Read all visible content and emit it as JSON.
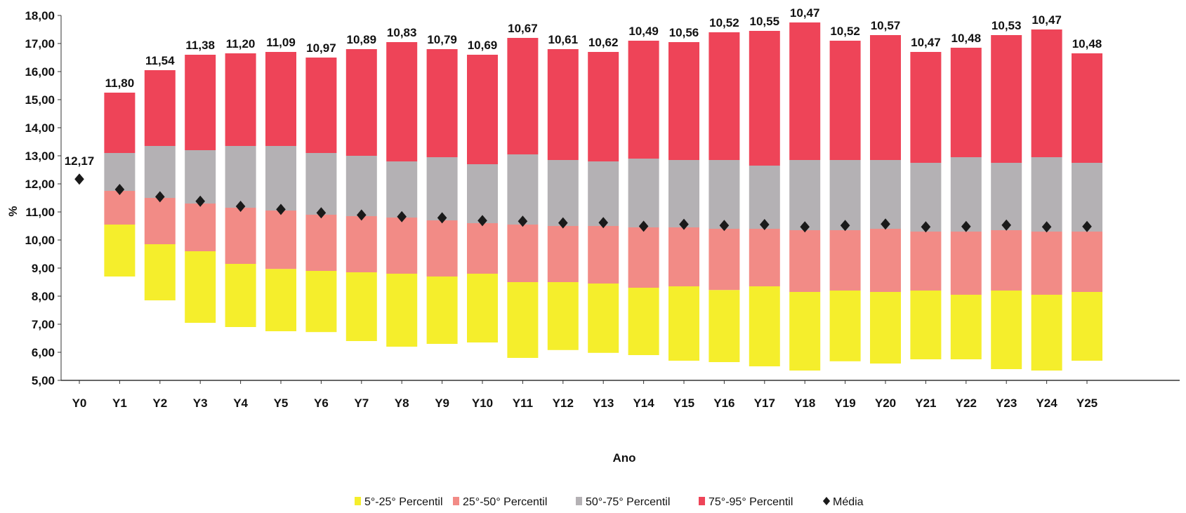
{
  "chart_data": {
    "type": "bar",
    "ylabel": "%",
    "xlabel": "Ano",
    "ylim": [
      5,
      18
    ],
    "yticks": [
      "5,00",
      "6,00",
      "7,00",
      "8,00",
      "9,00",
      "10,00",
      "11,00",
      "12,00",
      "13,00",
      "14,00",
      "15,00",
      "16,00",
      "17,00",
      "18,00"
    ],
    "categories": [
      "Y0",
      "Y1",
      "Y2",
      "Y3",
      "Y4",
      "Y5",
      "Y6",
      "Y7",
      "Y8",
      "Y9",
      "Y10",
      "Y11",
      "Y12",
      "Y13",
      "Y14",
      "Y15",
      "Y16",
      "Y17",
      "Y18",
      "Y19",
      "Y20",
      "Y21",
      "Y22",
      "Y23",
      "Y24",
      "Y25"
    ],
    "p5": [
      null,
      8.7,
      7.85,
      7.05,
      6.9,
      6.75,
      6.72,
      6.4,
      6.2,
      6.3,
      6.35,
      5.8,
      6.08,
      5.98,
      5.9,
      5.7,
      5.65,
      5.5,
      5.35,
      5.68,
      5.6,
      5.75,
      5.75,
      5.4,
      5.35,
      5.7
    ],
    "p25": [
      null,
      10.55,
      9.85,
      9.6,
      9.15,
      8.97,
      8.9,
      8.85,
      8.8,
      8.7,
      8.8,
      8.5,
      8.5,
      8.45,
      8.3,
      8.35,
      8.22,
      8.35,
      8.15,
      8.2,
      8.15,
      8.2,
      8.05,
      8.2,
      8.05,
      8.15
    ],
    "p50": [
      null,
      11.75,
      11.5,
      11.3,
      11.15,
      11.05,
      10.9,
      10.85,
      10.8,
      10.7,
      10.6,
      10.55,
      10.5,
      10.5,
      10.45,
      10.45,
      10.4,
      10.4,
      10.35,
      10.35,
      10.4,
      10.3,
      10.3,
      10.35,
      10.3,
      10.3
    ],
    "p75": [
      null,
      13.1,
      13.35,
      13.2,
      13.35,
      13.35,
      13.1,
      13.0,
      12.8,
      12.95,
      12.7,
      13.05,
      12.85,
      12.8,
      12.9,
      12.85,
      12.85,
      12.65,
      12.85,
      12.85,
      12.85,
      12.75,
      12.95,
      12.75,
      12.95,
      12.75
    ],
    "p95": [
      null,
      15.25,
      16.05,
      16.6,
      16.65,
      16.7,
      16.5,
      16.8,
      17.05,
      16.8,
      16.6,
      17.2,
      16.8,
      16.7,
      17.1,
      17.05,
      17.4,
      17.45,
      17.75,
      17.1,
      17.3,
      16.7,
      16.85,
      17.3,
      17.5,
      16.65
    ],
    "mean": [
      12.17,
      11.8,
      11.54,
      11.38,
      11.2,
      11.09,
      10.97,
      10.89,
      10.83,
      10.79,
      10.69,
      10.67,
      10.61,
      10.62,
      10.49,
      10.56,
      10.52,
      10.55,
      10.47,
      10.52,
      10.57,
      10.47,
      10.48,
      10.53,
      10.47,
      10.48
    ],
    "mean_labels": [
      "12,17",
      "11,80",
      "11,54",
      "11,38",
      "11,20",
      "11,09",
      "10,97",
      "10,89",
      "10,83",
      "10,79",
      "10,69",
      "10,67",
      "10,61",
      "10,62",
      "10,49",
      "10,56",
      "10,52",
      "10,55",
      "10,47",
      "10,52",
      "10,57",
      "10,47",
      "10,48",
      "10,53",
      "10,47",
      "10,48"
    ],
    "series": [
      {
        "name": "5°-25° Percentil",
        "color": "#f5ee2c"
      },
      {
        "name": "25°-50° Percentil",
        "color": "#f28b86"
      },
      {
        "name": "50°-75° Percentil",
        "color": "#b4b1b4"
      },
      {
        "name": "75°-95° Percentil",
        "color": "#ee4458"
      },
      {
        "name": "Média",
        "color": "#1a1a1a"
      }
    ],
    "legend_position": "bottom",
    "grid": false
  }
}
